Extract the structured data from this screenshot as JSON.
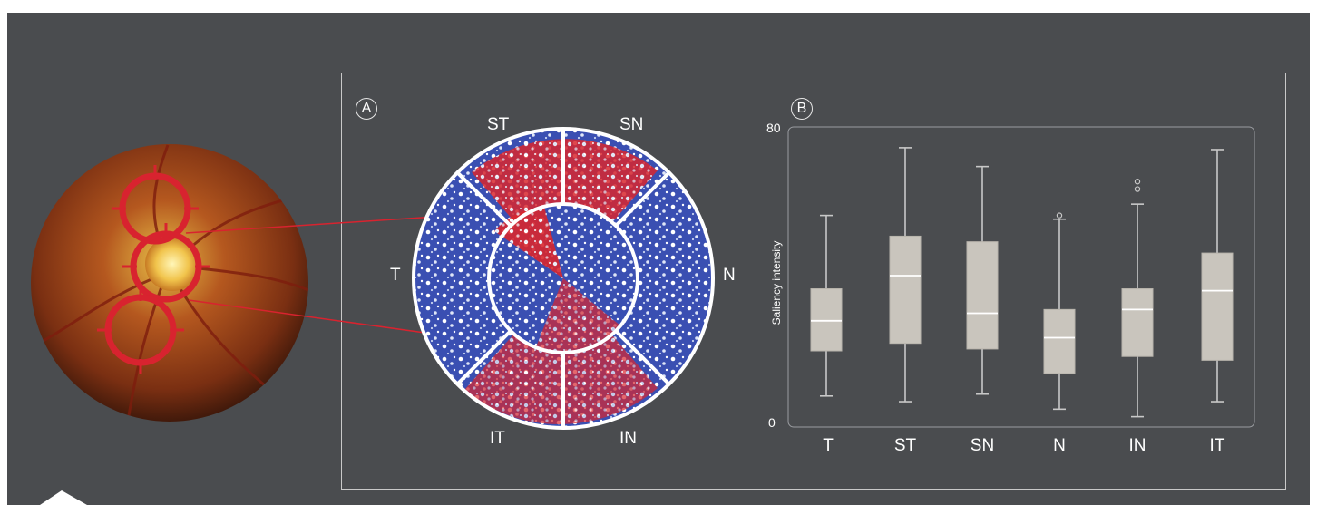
{
  "panel_labels": {
    "a": "A",
    "b": "B"
  },
  "sectors": {
    "st": "ST",
    "sn": "SN",
    "t": "T",
    "n": "N",
    "it": "IT",
    "in": "IN"
  },
  "colors": {
    "background": "#4a4c4f",
    "box_fill": "#c9c5bd",
    "median": "#ffffff",
    "whisker": "#c8c8c8",
    "saliency_high": "#d21d26",
    "saliency_low": "#2a40a8",
    "ring": "#d8232f"
  },
  "icons": [
    "fundus-photo",
    "scan-ring-target-icon",
    "saliency-heatmap-polar"
  ],
  "chart_data": {
    "type": "box",
    "title": "",
    "xlabel": "",
    "ylabel": "Saliency intensity",
    "ylim": [
      0,
      80
    ],
    "y_ticks": [
      "0",
      "80"
    ],
    "categories": [
      "T",
      "ST",
      "SN",
      "N",
      "IN",
      "IT"
    ],
    "boxes": [
      {
        "name": "T",
        "min": 8,
        "q1": 20,
        "median": 28,
        "q3": 36.5,
        "max": 56,
        "outliers": []
      },
      {
        "name": "ST",
        "min": 6.5,
        "q1": 22,
        "median": 40,
        "q3": 50.5,
        "max": 74,
        "outliers": []
      },
      {
        "name": "SN",
        "min": 8.5,
        "q1": 20.5,
        "median": 30,
        "q3": 49,
        "max": 69,
        "outliers": []
      },
      {
        "name": "N",
        "min": 4.5,
        "q1": 14,
        "median": 23.5,
        "q3": 31,
        "max": 55,
        "outliers": [
          56
        ]
      },
      {
        "name": "IN",
        "min": 2.5,
        "q1": 18.5,
        "median": 31,
        "q3": 36.5,
        "max": 59,
        "outliers": [
          63,
          65
        ]
      },
      {
        "name": "IT",
        "min": 6.5,
        "q1": 17.5,
        "median": 36,
        "q3": 46,
        "max": 73.5,
        "outliers": []
      }
    ],
    "grid": false,
    "legend": "none"
  }
}
